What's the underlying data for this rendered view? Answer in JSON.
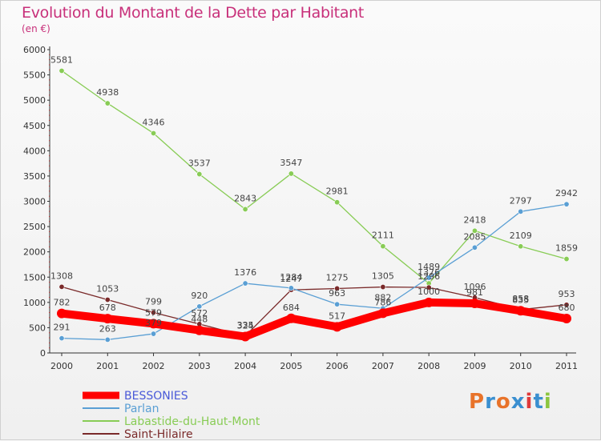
{
  "title": "Evolution du Montant de la Dette par Habitant",
  "subtitle": "(en €)",
  "logo": {
    "text": "Proxiti",
    "colors": [
      "#e8732a",
      "#3a8fd0",
      "#e8732a",
      "#3a8fd0",
      "#e03a3a",
      "#3a8fd0",
      "#8cc63f"
    ]
  },
  "chart_data": {
    "type": "line",
    "x": [
      "2000",
      "2001",
      "2002",
      "2003",
      "2004",
      "2005",
      "2006",
      "2007",
      "2008",
      "2009",
      "2010",
      "2011"
    ],
    "ylim": [
      0,
      6000
    ],
    "yticks": [
      0,
      500,
      1000,
      1500,
      2000,
      2500,
      3000,
      3500,
      4000,
      4500,
      5000,
      5500,
      6000
    ],
    "grid": false,
    "legend": "bottom-left",
    "series": [
      {
        "name": "BESSONIES",
        "color": "#ff0000",
        "values": [
          782,
          678,
          579,
          448,
          324,
          684,
          517,
          786,
          1000,
          981,
          835,
          680
        ],
        "labels": [
          "782",
          "678",
          "579",
          "448",
          "324",
          "684",
          "517",
          "786",
          "1000",
          "981",
          "835",
          "680"
        ]
      },
      {
        "name": "Parlan",
        "color": "#5a9fd4",
        "values": [
          291,
          263,
          379,
          920,
          1376,
          1284,
          963,
          882,
          1489,
          2085,
          2797,
          2942
        ],
        "labels": [
          "291",
          "263",
          "379",
          "920",
          "1376",
          "1284",
          "963",
          "882",
          "1489",
          "2085",
          "2797",
          "2942"
        ]
      },
      {
        "name": "Labastide-du-Haut-Mont",
        "color": "#88cc55",
        "values": [
          5581,
          4938,
          4346,
          3537,
          2843,
          3547,
          2981,
          2111,
          1376,
          2418,
          2109,
          1859
        ],
        "labels": [
          "5581",
          "4938",
          "4346",
          "3537",
          "2843",
          "3547",
          "2981",
          "2111",
          "1376",
          "2418",
          "2109",
          "1859"
        ]
      },
      {
        "name": "Saint-Hilaire",
        "color": "#7a2a2a",
        "values": [
          1308,
          1053,
          799,
          572,
          335,
          1247,
          1275,
          1305,
          1296,
          1096,
          858,
          953
        ],
        "labels": [
          "1308",
          "1053",
          "799",
          "572",
          "335",
          "1247",
          "1275",
          "1305",
          "1296",
          "1096",
          "858",
          "953"
        ]
      }
    ]
  }
}
